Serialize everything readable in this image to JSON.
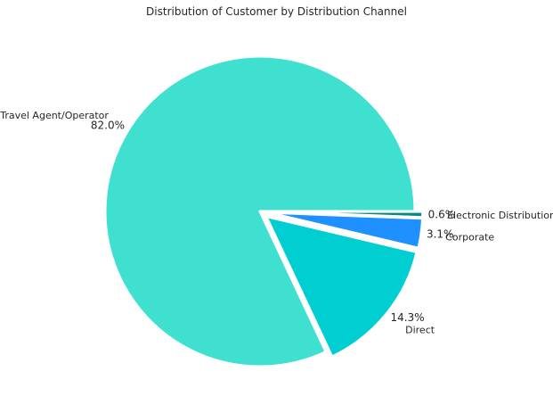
{
  "chart_data": {
    "type": "pie",
    "title": "Distribution of Customer by Distribution Channel",
    "slices": [
      {
        "label": "Travel Agent/Operator",
        "value": 82.0,
        "pct_label": "82.0%",
        "color": "#40e0d0",
        "explode": 0.0
      },
      {
        "label": "Direct",
        "value": 14.3,
        "pct_label": "14.3%",
        "color": "#00ced1",
        "explode": 0.05
      },
      {
        "label": "Corporate",
        "value": 3.1,
        "pct_label": "3.1%",
        "color": "#1e90ff",
        "explode": 0.05
      },
      {
        "label": "Electronic Distribution",
        "value": 0.6,
        "pct_label": "0.6%",
        "color": "#008b8b",
        "explode": 0.05
      }
    ],
    "start_angle_deg": 0,
    "direction": "counterclockwise",
    "edge_color": "#ffffff",
    "legend": "none"
  }
}
